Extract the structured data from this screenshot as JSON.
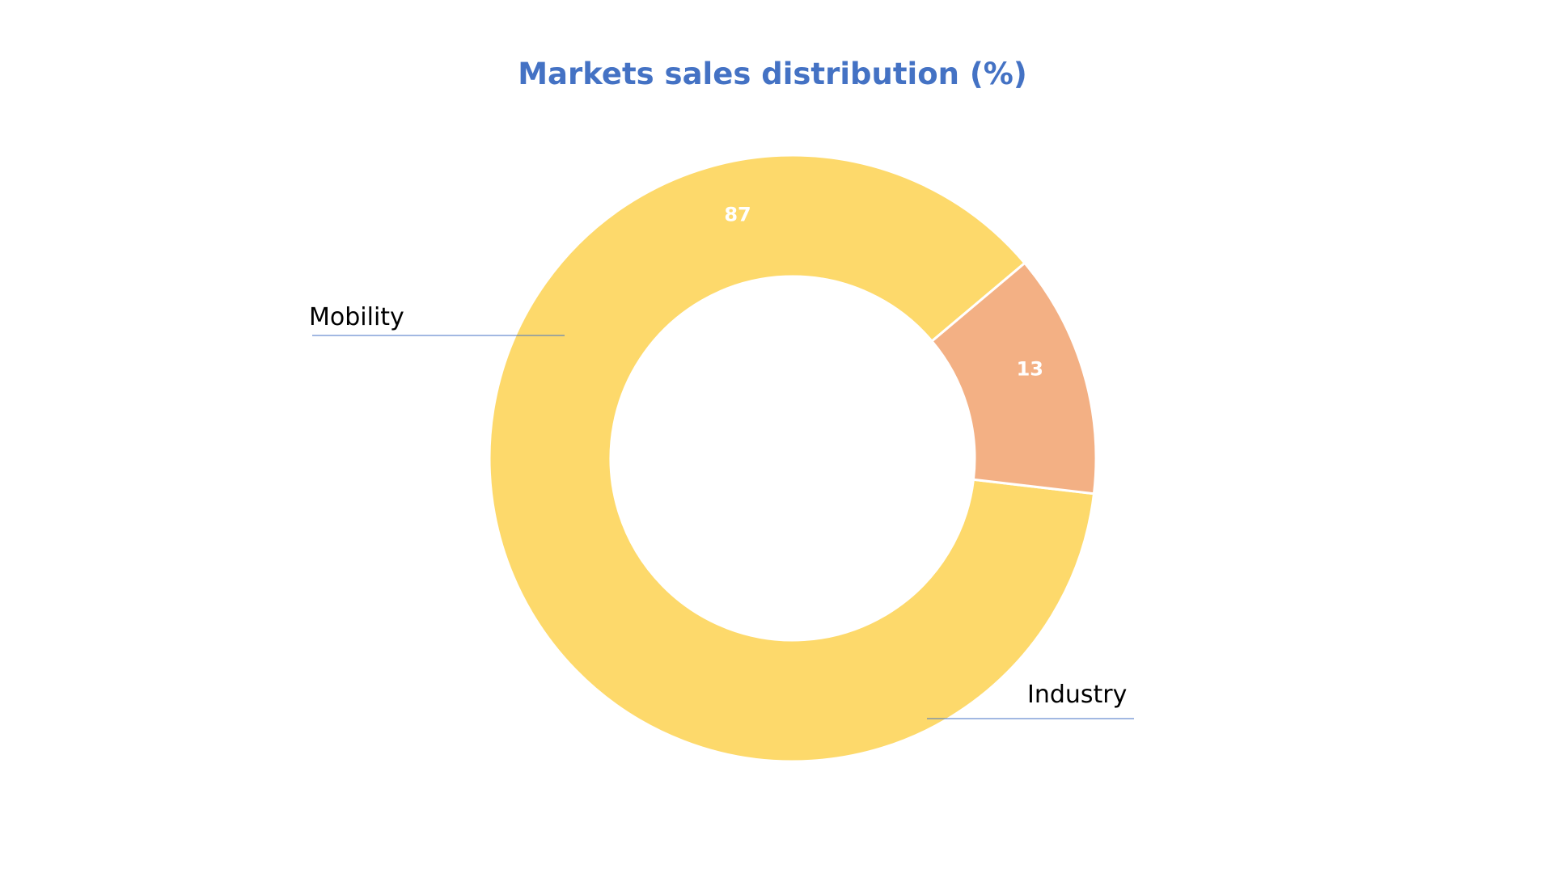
{
  "chart_data": {
    "type": "pie",
    "variant": "donut",
    "title": "Markets sales distribution (%)",
    "slices": [
      {
        "label": "Mobility",
        "value": 87,
        "color": "#FDD96B"
      },
      {
        "label": "Industry",
        "value": 13,
        "color": "#F3B084"
      }
    ],
    "legend": "none",
    "data_labels": "inside",
    "category_labels": "outside-with-leader-lines",
    "leader_line_color": "#4472C4",
    "title_color": "#4472C4"
  }
}
